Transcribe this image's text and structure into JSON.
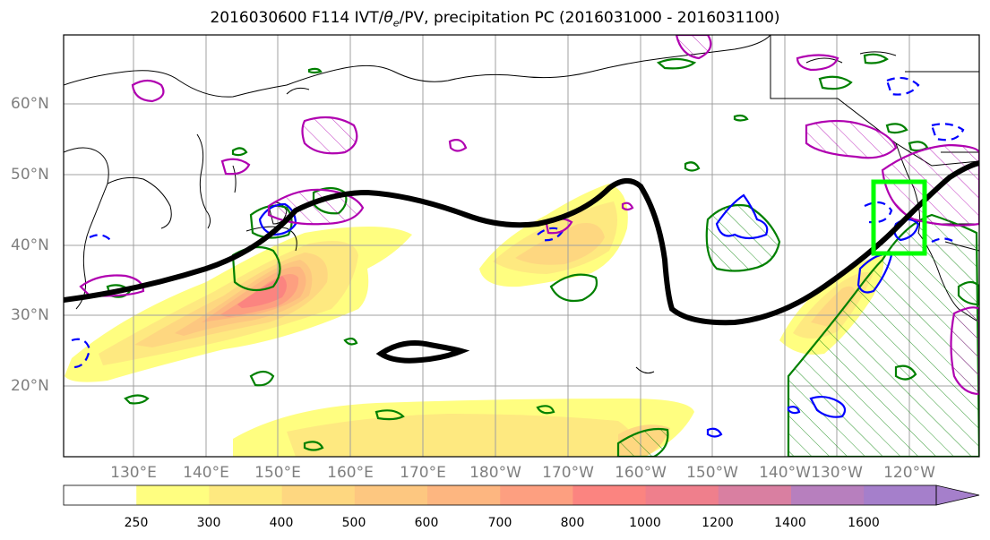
{
  "title": {
    "prefix": "2016030600 F114 IVT/",
    "theta": "θ",
    "theta_sub": "e",
    "suffix": "/PV, precipitation PC (2016031000 - 2016031100)"
  },
  "map": {
    "lat_labels": [
      "60°N",
      "50°N",
      "40°N",
      "30°N",
      "20°N"
    ],
    "lon_labels": [
      "130°E",
      "140°E",
      "150°E",
      "160°E",
      "170°E",
      "180°W",
      "170°W",
      "160°W",
      "150°W",
      "140°W",
      "130°W",
      "120°W"
    ],
    "colors": {
      "pv_contour": "#000000",
      "positive_pc": "#008000",
      "negative_pc_blue": "#0000ff",
      "theta_e": "#b000b0",
      "target_box": "#00ff00",
      "gridline": "#a0a0a0",
      "coast": "#000000"
    }
  },
  "colorbar": {
    "tick_labels": [
      "250",
      "300",
      "400",
      "500",
      "600",
      "700",
      "800",
      "1000",
      "1200",
      "1400",
      "1600"
    ],
    "colors": [
      "#ffffff",
      "#fffe80",
      "#fee980",
      "#fed780",
      "#fdc780",
      "#fdb680",
      "#fd9f80",
      "#fb8480",
      "#ef7f8c",
      "#d97fa1",
      "#b77fbe",
      "#a57fcb"
    ]
  }
}
